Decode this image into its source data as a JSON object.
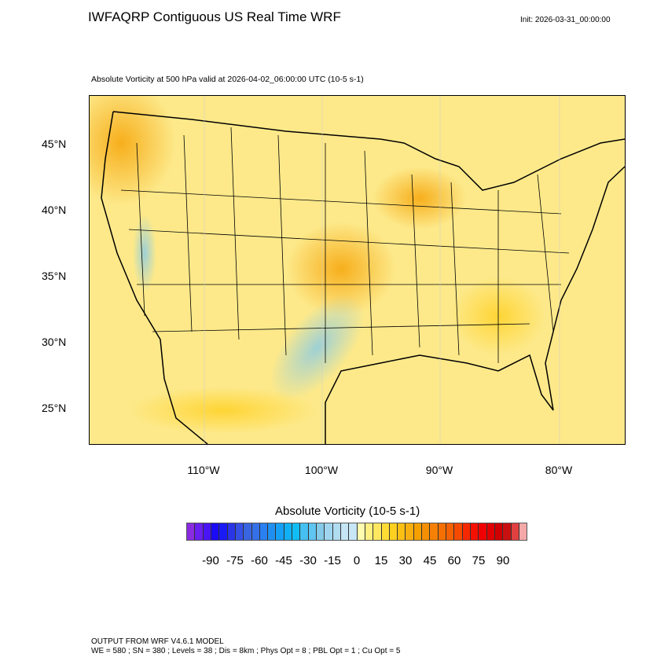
{
  "header": {
    "title": "IWFAQRP Contiguous US Real Time WRF",
    "init": "Init: 2026-03-31_00:00:00"
  },
  "plot": {
    "subtitle": "Absolute Vorticity at 500 hPa valid at 2026-04-02_06:00:00 UTC   (10-5 s-1)",
    "lat_labels": [
      "45°N",
      "40°N",
      "35°N",
      "30°N",
      "25°N"
    ],
    "lon_labels": [
      "110°W",
      "100°W",
      "90°W",
      "80°W"
    ],
    "background_color": "#fde98a"
  },
  "colorbar": {
    "title": "Absolute Vorticity  (10-5 s-1)",
    "labels": [
      "-90",
      "-75",
      "-60",
      "-45",
      "-30",
      "-15",
      "0",
      "15",
      "30",
      "45",
      "60",
      "75",
      "90"
    ],
    "range": [
      -105,
      105
    ],
    "interval": 5,
    "colors": [
      "#8a2be2",
      "#6a1ef0",
      "#4a14f5",
      "#1a0af5",
      "#1a1af5",
      "#2a35e8",
      "#3550e5",
      "#3a65e0",
      "#3570e8",
      "#2a80f0",
      "#2090f0",
      "#15a0f5",
      "#10b0f5",
      "#10bdf5",
      "#45c0f0",
      "#60c5f0",
      "#85cae8",
      "#a0d5f0",
      "#b0dcf0",
      "#c5e5f5",
      "#c8e6f5",
      "#fffcb0",
      "#fff080",
      "#ffe860",
      "#ffdc35",
      "#ffd020",
      "#fcc015",
      "#f8b010",
      "#f5a000",
      "#f59005",
      "#f58005",
      "#f57000",
      "#f56000",
      "#f54a00",
      "#f52800",
      "#f51000",
      "#f00000",
      "#e00000",
      "#d00000",
      "#c81010",
      "#e04040",
      "#f5a8a8"
    ]
  },
  "footer": {
    "line1": "OUTPUT FROM WRF V4.6.1 MODEL",
    "line2": "WE = 580 ; SN = 380 ; Levels = 38 ; Dis = 8km ; Phys Opt = 8 ; PBL Opt = 1 ; Cu Opt = 5"
  }
}
